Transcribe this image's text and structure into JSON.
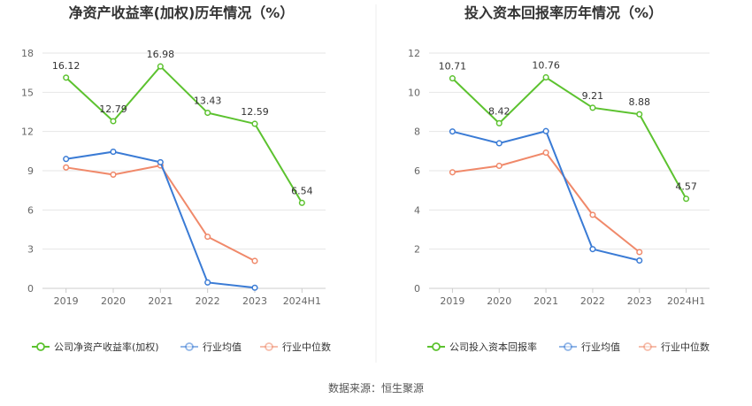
{
  "source": "数据来源：恒生聚源",
  "colors": {
    "company": "#5cc22f",
    "avg": "#3a7bd5",
    "median": "#f0896a",
    "grid": "#e6e6e6",
    "axis": "#cccccc"
  },
  "chart_data": [
    {
      "type": "line",
      "title": "净资产收益率(加权)历年情况（%）",
      "categories": [
        "2019",
        "2020",
        "2021",
        "2022",
        "2023",
        "2024H1"
      ],
      "ylim": [
        0,
        18
      ],
      "yticks": [
        0,
        3,
        6,
        9,
        12,
        15,
        18
      ],
      "legend_position": "bottom",
      "series": [
        {
          "name": "公司净资产收益率(加权)",
          "color": "#5cc22f",
          "values": [
            16.12,
            12.79,
            16.98,
            13.43,
            12.59,
            6.54
          ],
          "labels": [
            "16.12",
            "12.79",
            "16.98",
            "13.43",
            "12.59",
            "6.54"
          ]
        },
        {
          "name": "行业均值",
          "color": "#3a7bd5",
          "values": [
            9.9,
            10.45,
            9.65,
            0.45,
            0.05,
            null
          ]
        },
        {
          "name": "行业中位数",
          "color": "#f0896a",
          "values": [
            9.25,
            8.7,
            9.4,
            3.95,
            2.1,
            null
          ]
        }
      ]
    },
    {
      "type": "line",
      "title": "投入资本回报率历年情况（%）",
      "categories": [
        "2019",
        "2020",
        "2021",
        "2022",
        "2023",
        "2024H1"
      ],
      "ylim": [
        0,
        12
      ],
      "yticks": [
        0,
        2,
        4,
        6,
        8,
        10,
        12
      ],
      "legend_position": "bottom",
      "series": [
        {
          "name": "公司投入资本回报率",
          "color": "#5cc22f",
          "values": [
            10.71,
            8.42,
            10.76,
            9.21,
            8.88,
            4.57
          ],
          "labels": [
            "10.71",
            "8.42",
            "10.76",
            "9.21",
            "8.88",
            "4.57"
          ]
        },
        {
          "name": "行业均值",
          "color": "#3a7bd5",
          "values": [
            8.0,
            7.4,
            8.02,
            2.0,
            1.42,
            null
          ]
        },
        {
          "name": "行业中位数",
          "color": "#f0896a",
          "values": [
            5.92,
            6.25,
            6.92,
            3.75,
            1.85,
            null
          ]
        }
      ]
    }
  ]
}
